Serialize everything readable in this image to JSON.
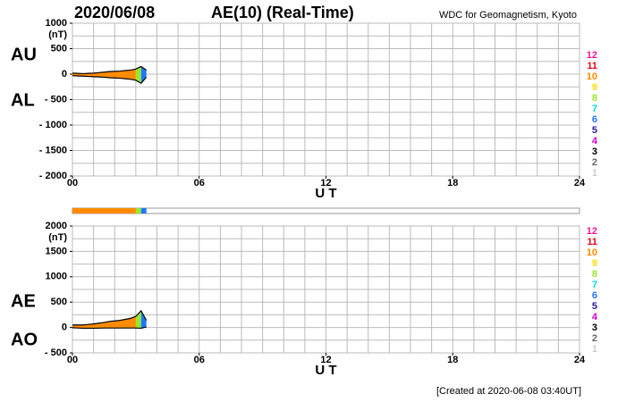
{
  "page": {
    "date": "2020/06/08",
    "title": "AE(10) (Real-Time)",
    "source": "WDC for Geomagnetism, Kyoto",
    "created": "[Created at 2020-06-08 03:40UT]"
  },
  "stations": {
    "legend": [
      {
        "count": 12,
        "color": "#ff1493"
      },
      {
        "count": 11,
        "color": "#e8001c"
      },
      {
        "count": 10,
        "color": "#ff8c00"
      },
      {
        "count": 9,
        "color": "#ffe000"
      },
      {
        "count": 8,
        "color": "#9ae62e"
      },
      {
        "count": 7,
        "color": "#00d8e8"
      },
      {
        "count": 6,
        "color": "#1e78ff"
      },
      {
        "count": 5,
        "color": "#2a1aa0"
      },
      {
        "count": 4,
        "color": "#d000d0"
      },
      {
        "count": 3,
        "color": "#000000"
      },
      {
        "count": 2,
        "color": "#666666"
      },
      {
        "count": 1,
        "color": "#cccccc"
      }
    ],
    "coverage": [
      {
        "start": 0,
        "end": 3,
        "stations": 10
      },
      {
        "start": 3,
        "end": 3.25,
        "stations": 8
      },
      {
        "start": 3.25,
        "end": 3.5,
        "stations": 6
      }
    ]
  },
  "chart_data": [
    {
      "type": "area",
      "y_label": "(nT)",
      "x_label": "U T",
      "x": [
        0,
        0.25,
        0.5,
        0.75,
        1,
        1.25,
        1.5,
        1.75,
        2,
        2.25,
        2.5,
        2.75,
        3,
        3.25,
        3.5
      ],
      "series": [
        {
          "name": "AU",
          "color": "#000000",
          "values": [
            20,
            15,
            10,
            15,
            20,
            30,
            40,
            50,
            55,
            60,
            70,
            80,
            100,
            150,
            80
          ]
        },
        {
          "name": "AL",
          "color": "#000000",
          "values": [
            -30,
            -35,
            -40,
            -45,
            -50,
            -55,
            -60,
            -70,
            -75,
            -80,
            -90,
            -100,
            -120,
            -180,
            -60
          ]
        }
      ],
      "xlim": [
        0,
        24
      ],
      "xticks": [
        {
          "value": 0,
          "label": "00"
        },
        {
          "value": 6,
          "label": "06"
        },
        12,
        18,
        24
      ],
      "ylim": [
        -2000,
        1000
      ],
      "yticks": [
        1000,
        500,
        0,
        {
          "value": -500,
          "label": "- 500"
        },
        {
          "value": -1000,
          "label": "- 1000"
        },
        {
          "value": -1500,
          "label": "- 1500"
        },
        {
          "value": -2000,
          "label": "- 2000"
        }
      ],
      "minor_xticks": [
        0,
        1,
        2,
        3,
        4,
        5,
        6,
        7,
        8,
        9,
        10,
        11,
        12,
        13,
        14,
        15,
        16,
        17,
        18,
        19,
        20,
        21,
        22,
        23,
        24
      ],
      "minor_yticks": [
        1000,
        750,
        500,
        250,
        0,
        -250,
        -500,
        -750,
        -1000,
        -1250,
        -1500,
        -1750,
        -2000
      ]
    },
    {
      "type": "area",
      "y_label": "(nT)",
      "x_label": "U T",
      "x": [
        0,
        0.25,
        0.5,
        0.75,
        1,
        1.25,
        1.5,
        1.75,
        2,
        2.25,
        2.5,
        2.75,
        3,
        3.25,
        3.5
      ],
      "series": [
        {
          "name": "AE",
          "color": "#000000",
          "values": [
            50,
            50,
            50,
            60,
            70,
            85,
            100,
            120,
            130,
            140,
            160,
            180,
            220,
            330,
            140
          ]
        },
        {
          "name": "AO",
          "color": "#000000",
          "values": [
            -5,
            -10,
            -15,
            -15,
            -15,
            -12.5,
            -10,
            -10,
            -10,
            -10,
            -10,
            -10,
            -10,
            -15,
            10
          ]
        }
      ],
      "xlim": [
        0,
        24
      ],
      "xticks": [
        {
          "value": 0,
          "label": "00"
        },
        {
          "value": 6,
          "label": "06"
        },
        12,
        18,
        24
      ],
      "ylim": [
        -500,
        2000
      ],
      "yticks": [
        2000,
        1500,
        1000,
        500,
        0,
        {
          "value": -500,
          "label": "- 500"
        }
      ],
      "minor_xticks": [
        0,
        1,
        2,
        3,
        4,
        5,
        6,
        7,
        8,
        9,
        10,
        11,
        12,
        13,
        14,
        15,
        16,
        17,
        18,
        19,
        20,
        21,
        22,
        23,
        24
      ],
      "minor_yticks": [
        2000,
        1750,
        1500,
        1250,
        1000,
        750,
        500,
        250,
        0,
        -250,
        -500
      ]
    }
  ]
}
